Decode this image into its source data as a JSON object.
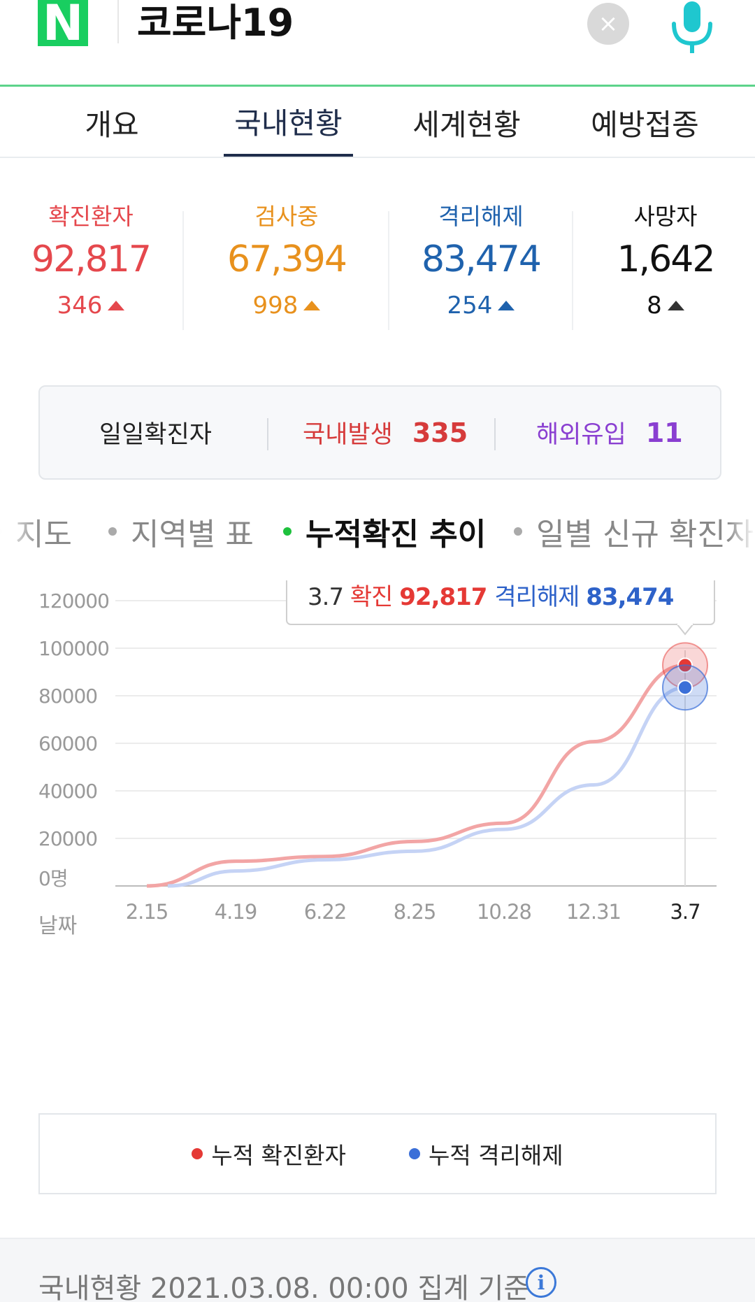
{
  "header": {
    "logo_letter": "N",
    "search_query": "코로나19",
    "clear_icon": "×"
  },
  "tabs": [
    {
      "label": "개요",
      "active": false
    },
    {
      "label": "국내현황",
      "active": true
    },
    {
      "label": "세계현황",
      "active": false
    },
    {
      "label": "예방접종",
      "active": false
    }
  ],
  "stats": [
    {
      "label": "확진환자",
      "value": "92,817",
      "delta": "346",
      "color": "#e5484d"
    },
    {
      "label": "검사중",
      "value": "67,394",
      "delta": "998",
      "color": "#e8911d"
    },
    {
      "label": "격리해제",
      "value": "83,474",
      "delta": "254",
      "color": "#1f62ad"
    },
    {
      "label": "사망자",
      "value": "1,642",
      "delta": "8",
      "color": "#111111"
    }
  ],
  "daily": {
    "title": "일일확진자",
    "domestic_label": "국내발생",
    "domestic_value": "335",
    "overseas_label": "해외유입",
    "overseas_value": "11",
    "domestic_color": "#d63b3b",
    "overseas_color": "#8a3fd1"
  },
  "chart_tabs": [
    {
      "label": "지도",
      "active": false
    },
    {
      "label": "지역별 표",
      "active": false
    },
    {
      "label": "누적확진 추이",
      "active": true
    },
    {
      "label": "일별 신규 확진자",
      "active": false
    }
  ],
  "tooltip": {
    "date": "3.7",
    "confirmed_label": "확진",
    "confirmed_value": "92,817",
    "released_label": "격리해제",
    "released_value": "83,474"
  },
  "chart_data": {
    "type": "line",
    "ylim": [
      0,
      120000
    ],
    "yticks": [
      "120000",
      "100000",
      "80000",
      "60000",
      "40000",
      "20000",
      "0명"
    ],
    "xlabel": "날짜",
    "x": [
      "2.15",
      "4.19",
      "6.22",
      "8.25",
      "10.28",
      "12.31",
      "3.7"
    ],
    "series": [
      {
        "name": "누적 확진환자",
        "color": "#f2a5a5",
        "values": [
          0,
          10400,
          12400,
          18700,
          26400,
          60700,
          92817
        ]
      },
      {
        "name": "누적 격리해제",
        "color": "#c5d3f5",
        "values": [
          0,
          6300,
          11000,
          14600,
          23800,
          42500,
          83474
        ]
      }
    ],
    "legend_position": "bottom",
    "grid": true
  },
  "legend": [
    {
      "label": "누적 확진환자",
      "color": "#e53935"
    },
    {
      "label": "누적 격리해제",
      "color": "#3b6fd8"
    }
  ],
  "footer": {
    "text": "국내현황 2021.03.08. 00:00 집계 기준"
  }
}
